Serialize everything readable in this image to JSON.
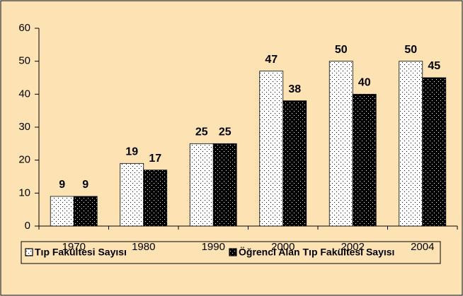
{
  "chart_data": {
    "type": "bar",
    "categories": [
      "1970",
      "1980",
      "1990",
      "2000",
      "2002",
      "2004"
    ],
    "series": [
      {
        "name": "Tıp Fakültesi Sayısı",
        "color": "#ffffff",
        "values": [
          9,
          19,
          25,
          47,
          50,
          50
        ]
      },
      {
        "name": "Öğrenci Alan Tıp Fakültesi Sayısı",
        "color": "#000000",
        "values": [
          9,
          17,
          25,
          38,
          40,
          45
        ]
      }
    ],
    "ylim": [
      0,
      60
    ],
    "yticks": [
      0,
      10,
      20,
      30,
      40,
      50,
      60
    ],
    "grid": false,
    "legend": "bottom",
    "background": "#fde3b4"
  }
}
